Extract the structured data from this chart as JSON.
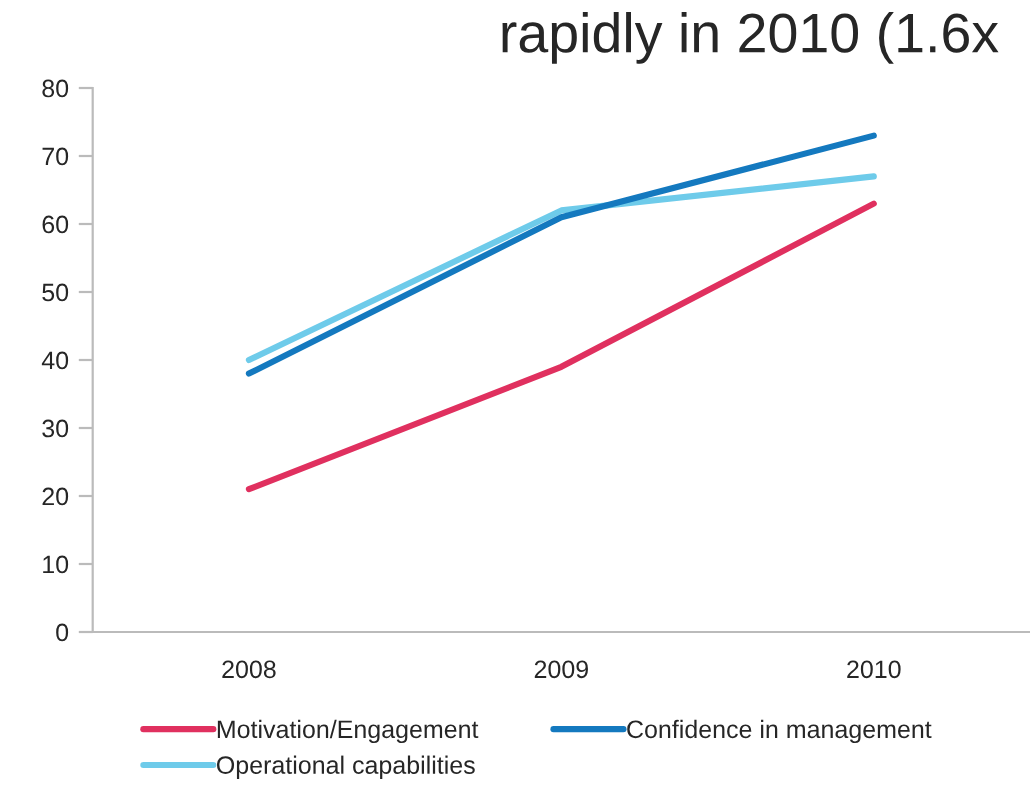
{
  "chart_data": {
    "type": "line",
    "title": "rapidly in 2010 (1.6x",
    "categories": [
      "2008",
      "2009",
      "2010"
    ],
    "series": [
      {
        "name": "Motivation/Engagement",
        "color": "#e0305f",
        "values": [
          21,
          39,
          63
        ]
      },
      {
        "name": "Operational capabilities",
        "color": "#6ecbea",
        "values": [
          40,
          62,
          67
        ]
      },
      {
        "name": "Confidence in management",
        "color": "#1479bf",
        "values": [
          38,
          61,
          73
        ]
      }
    ],
    "ylim": [
      0,
      80
    ],
    "yticks": [
      0,
      10,
      20,
      30,
      40,
      50,
      60,
      70,
      80
    ],
    "grid": false,
    "legend": "bottom",
    "marker": "none",
    "line_style": "solid"
  }
}
